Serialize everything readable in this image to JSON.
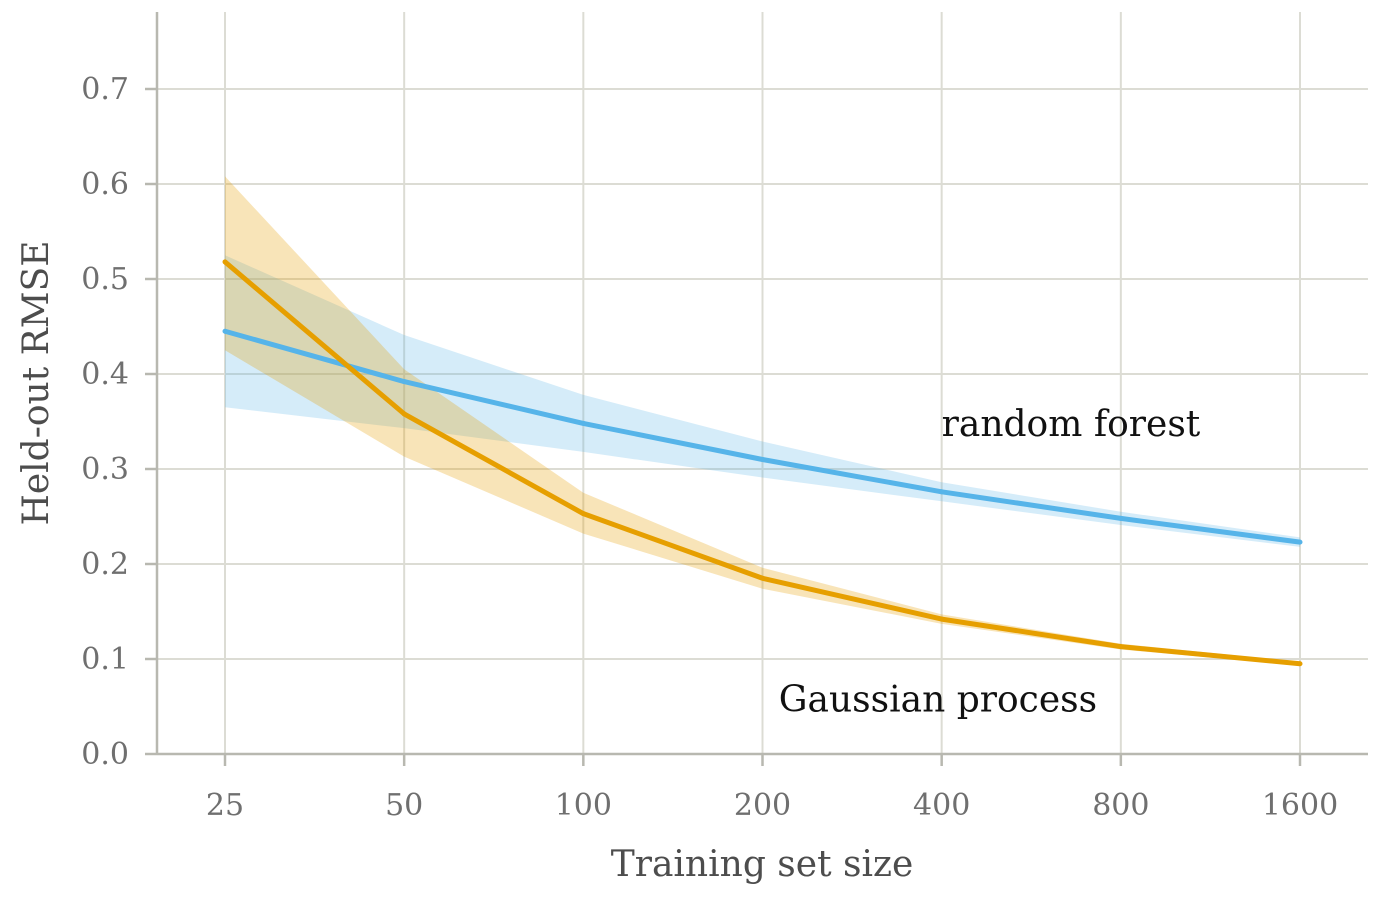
{
  "chart_data": {
    "type": "line",
    "title": "",
    "xlabel": "Training set size",
    "ylabel": "Held-out RMSE",
    "x_scale": "log2",
    "x": [
      25,
      50,
      100,
      200,
      400,
      800,
      1600
    ],
    "x_tick_labels": [
      "25",
      "50",
      "100",
      "200",
      "400",
      "800",
      "1600"
    ],
    "xlim": [
      19.2,
      2000
    ],
    "ylim": [
      0.0,
      0.7
    ],
    "y_ticks": [
      0.0,
      0.1,
      0.2,
      0.3,
      0.4,
      0.5,
      0.6,
      0.7
    ],
    "y_tick_labels": [
      "0.0",
      "0.1",
      "0.2",
      "0.3",
      "0.4",
      "0.5",
      "0.6",
      "0.7"
    ],
    "grid": true,
    "legend": "none",
    "series": [
      {
        "name": "random forest",
        "color": "#56b4e9",
        "values": [
          0.445,
          0.392,
          0.348,
          0.31,
          0.276,
          0.248,
          0.223
        ],
        "lower": [
          0.365,
          0.343,
          0.318,
          0.291,
          0.266,
          0.241,
          0.218
        ],
        "upper": [
          0.525,
          0.441,
          0.378,
          0.329,
          0.286,
          0.255,
          0.228
        ],
        "label_at": {
          "x": 400,
          "y": 0.335
        }
      },
      {
        "name": "Gaussian process",
        "color": "#e69f00",
        "values": [
          0.518,
          0.358,
          0.253,
          0.185,
          0.142,
          0.113,
          0.095
        ],
        "lower": [
          0.425,
          0.313,
          0.232,
          0.174,
          0.137,
          0.11,
          0.093
        ],
        "upper": [
          0.608,
          0.405,
          0.275,
          0.196,
          0.147,
          0.116,
          0.097
        ],
        "label_at": {
          "x": 213,
          "y": 0.045
        }
      }
    ]
  }
}
